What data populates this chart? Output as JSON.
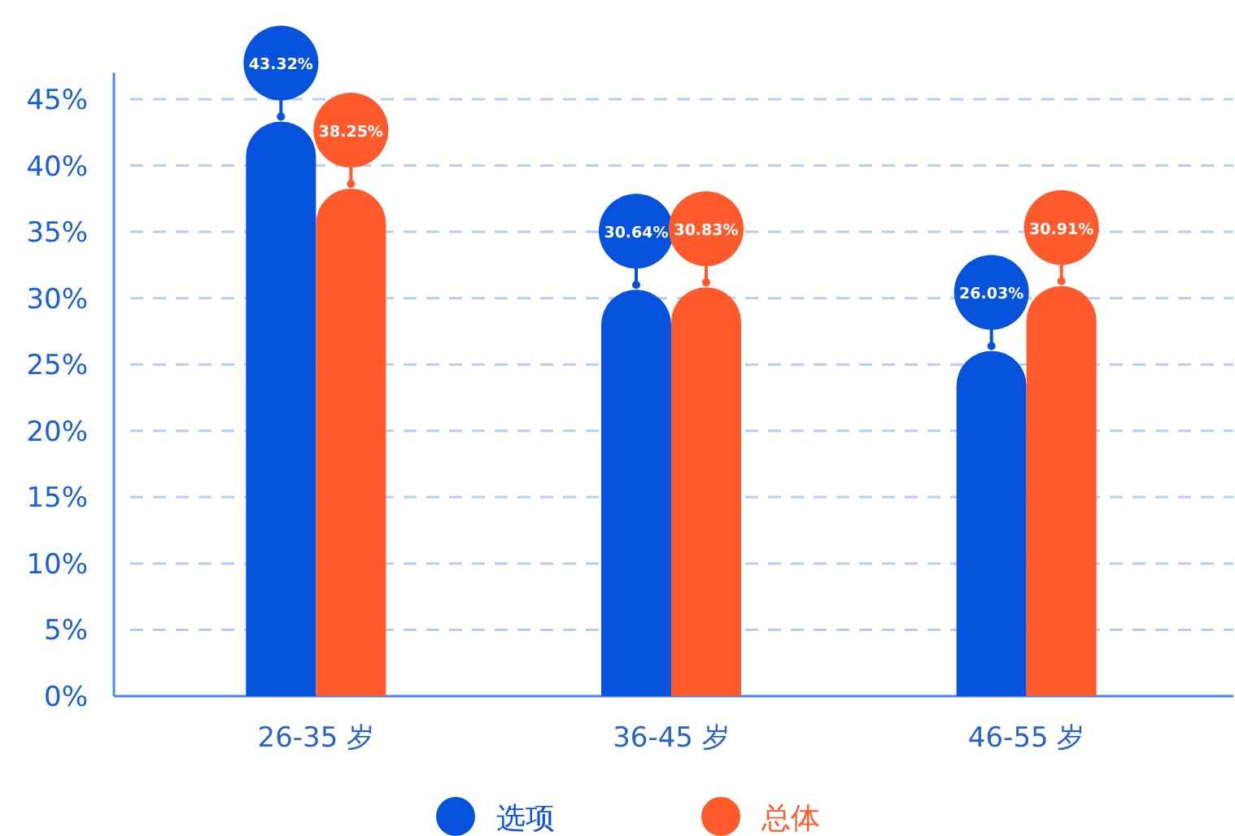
{
  "chart_data": {
    "type": "bar",
    "categories": [
      "26-35 岁",
      "36-45 岁",
      "46-55 岁"
    ],
    "series": [
      {
        "name": "选项",
        "color": "#0652dd",
        "values": [
          43.32,
          30.64,
          26.03
        ],
        "value_labels": [
          "43.32%",
          "30.64%",
          "26.03%"
        ]
      },
      {
        "name": "总体",
        "color": "#ff5a2c",
        "values": [
          38.25,
          30.83,
          30.91
        ],
        "value_labels": [
          "38.25%",
          "30.83%",
          "30.91%"
        ]
      }
    ],
    "ylim": [
      0,
      47
    ],
    "yticks": [
      {
        "value": 0,
        "label": "0%"
      },
      {
        "value": 5,
        "label": "5%"
      },
      {
        "value": 10,
        "label": "10%"
      },
      {
        "value": 15,
        "label": "15%"
      },
      {
        "value": 20,
        "label": "20%"
      },
      {
        "value": 25,
        "label": "25%"
      },
      {
        "value": 30,
        "label": "30%"
      },
      {
        "value": 35,
        "label": "35%"
      },
      {
        "value": 40,
        "label": "40%"
      },
      {
        "value": 45,
        "label": "45%"
      }
    ],
    "grid": "y",
    "line_style": "dashed",
    "legend": "bottom"
  }
}
